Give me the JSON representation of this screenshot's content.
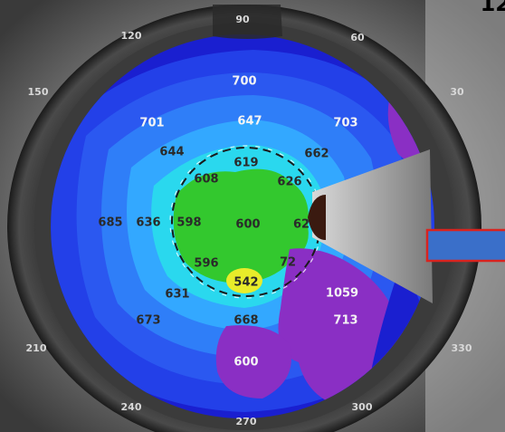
{
  "corner_text": "12",
  "angle_labels": [
    {
      "name": "angle-90",
      "text": "90"
    },
    {
      "name": "angle-60",
      "text": "60"
    },
    {
      "name": "angle-30",
      "text": "30"
    },
    {
      "name": "angle-120",
      "text": "120"
    },
    {
      "name": "angle-150",
      "text": "150"
    },
    {
      "name": "angle-210",
      "text": "210"
    },
    {
      "name": "angle-240",
      "text": "240"
    },
    {
      "name": "angle-270",
      "text": "270"
    },
    {
      "name": "angle-300",
      "text": "300"
    },
    {
      "name": "angle-330",
      "text": "330"
    }
  ],
  "thickness_values": [
    "700",
    "647",
    "701",
    "703",
    "644",
    "619",
    "662",
    "608",
    "626",
    "685",
    "636",
    "598",
    "600",
    "62",
    "596",
    "542",
    "72",
    "631",
    "1059",
    "673",
    "668",
    "713",
    "600"
  ],
  "colors": {
    "deep_blue": "#1a1fd0",
    "medium_blue": "#2b58f0",
    "light_blue": "#33a8ff",
    "cyan": "#2ad8ee",
    "green": "#33c82e",
    "yellow": "#e9ec2a",
    "purple": "#8a2fc4",
    "arrow_fill": "#3a6fc9",
    "arrow_border": "#d9231f"
  }
}
